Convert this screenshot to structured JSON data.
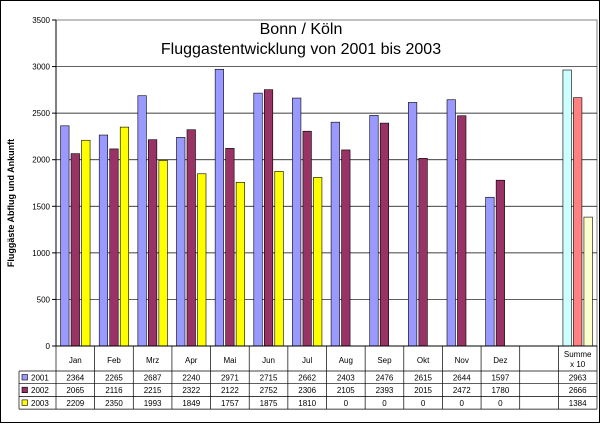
{
  "chart_data": {
    "type": "bar",
    "title_line1": "Bonn / Köln",
    "title_line2": "Fluggastentwicklung von 2001 bis 2003",
    "ylabel": "Fluggäste Abflug und Ankunft",
    "ylim": [
      0,
      3500
    ],
    "yticks": [
      "0",
      "500",
      "1000",
      "1500",
      "2000",
      "2500",
      "3000",
      "3500"
    ],
    "grid": true,
    "categories": [
      "Jan",
      "Feb",
      "Mrz",
      "Apr",
      "Mai",
      "Jun",
      "Jul",
      "Aug",
      "Sep",
      "Okt",
      "Nov",
      "Dez"
    ],
    "summary_label": [
      "Summe",
      "x 10"
    ],
    "series": [
      {
        "name": "2001",
        "color": "#9999ff",
        "summary_color": "#ccffff",
        "values": [
          2364,
          2265,
          2687,
          2240,
          2971,
          2715,
          2662,
          2403,
          2476,
          2615,
          2644,
          1597
        ],
        "summary": 2963,
        "table": [
          "2364",
          "2265",
          "2687",
          "2240",
          "2971",
          "2715",
          "2662",
          "2403",
          "2476",
          "2615",
          "2644",
          "1597",
          "2963"
        ]
      },
      {
        "name": "2002",
        "color": "#993366",
        "summary_color": "#ff8080",
        "values": [
          2065,
          2116,
          2215,
          2322,
          2122,
          2752,
          2306,
          2105,
          2393,
          2015,
          2472,
          1780
        ],
        "summary": 2666,
        "table": [
          "2065",
          "2116",
          "2215",
          "2322",
          "2122",
          "2752",
          "2306",
          "2105",
          "2393",
          "2015",
          "2472",
          "1780",
          "2666"
        ]
      },
      {
        "name": "2003",
        "color": "#ffff00",
        "summary_color": "#ffffcc",
        "values": [
          2209,
          2350,
          1993,
          1849,
          1757,
          1875,
          1810,
          0,
          0,
          0,
          0,
          0
        ],
        "summary": 1384,
        "table": [
          "2209",
          "2350",
          "1993",
          "1849",
          "1757",
          "1875",
          "1810",
          "0",
          "0",
          "0",
          "0",
          "0",
          "1384"
        ]
      }
    ]
  }
}
